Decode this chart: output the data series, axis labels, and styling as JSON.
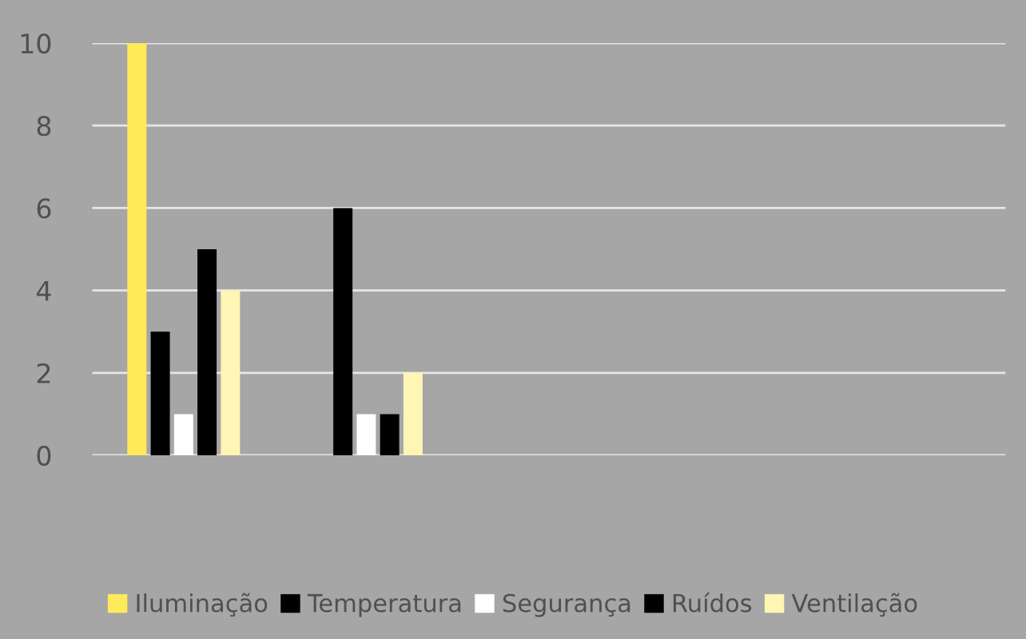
{
  "chart_data": {
    "type": "bar",
    "categories": [
      null,
      null,
      null,
      null,
      null
    ],
    "series": [
      {
        "name": "Iluminação",
        "color": "#ffeb5a",
        "values": [
          10,
          0,
          null,
          null,
          null
        ]
      },
      {
        "name": "Temperatura",
        "color": "#000000",
        "values": [
          3,
          6,
          null,
          null,
          null
        ]
      },
      {
        "name": "Segurança",
        "color": "#ffffff",
        "values": [
          1,
          1,
          null,
          null,
          null
        ]
      },
      {
        "name": "Ruídos",
        "color": "#000000",
        "values": [
          5,
          1,
          null,
          null,
          null
        ]
      },
      {
        "name": "Ventilação",
        "color": "#fff5b4",
        "values": [
          4,
          2,
          null,
          null,
          null
        ]
      }
    ],
    "ylim": [
      0,
      10
    ],
    "yticks": [
      0,
      2,
      4,
      6,
      8,
      10
    ],
    "grid": "y",
    "legend": "bottom"
  }
}
